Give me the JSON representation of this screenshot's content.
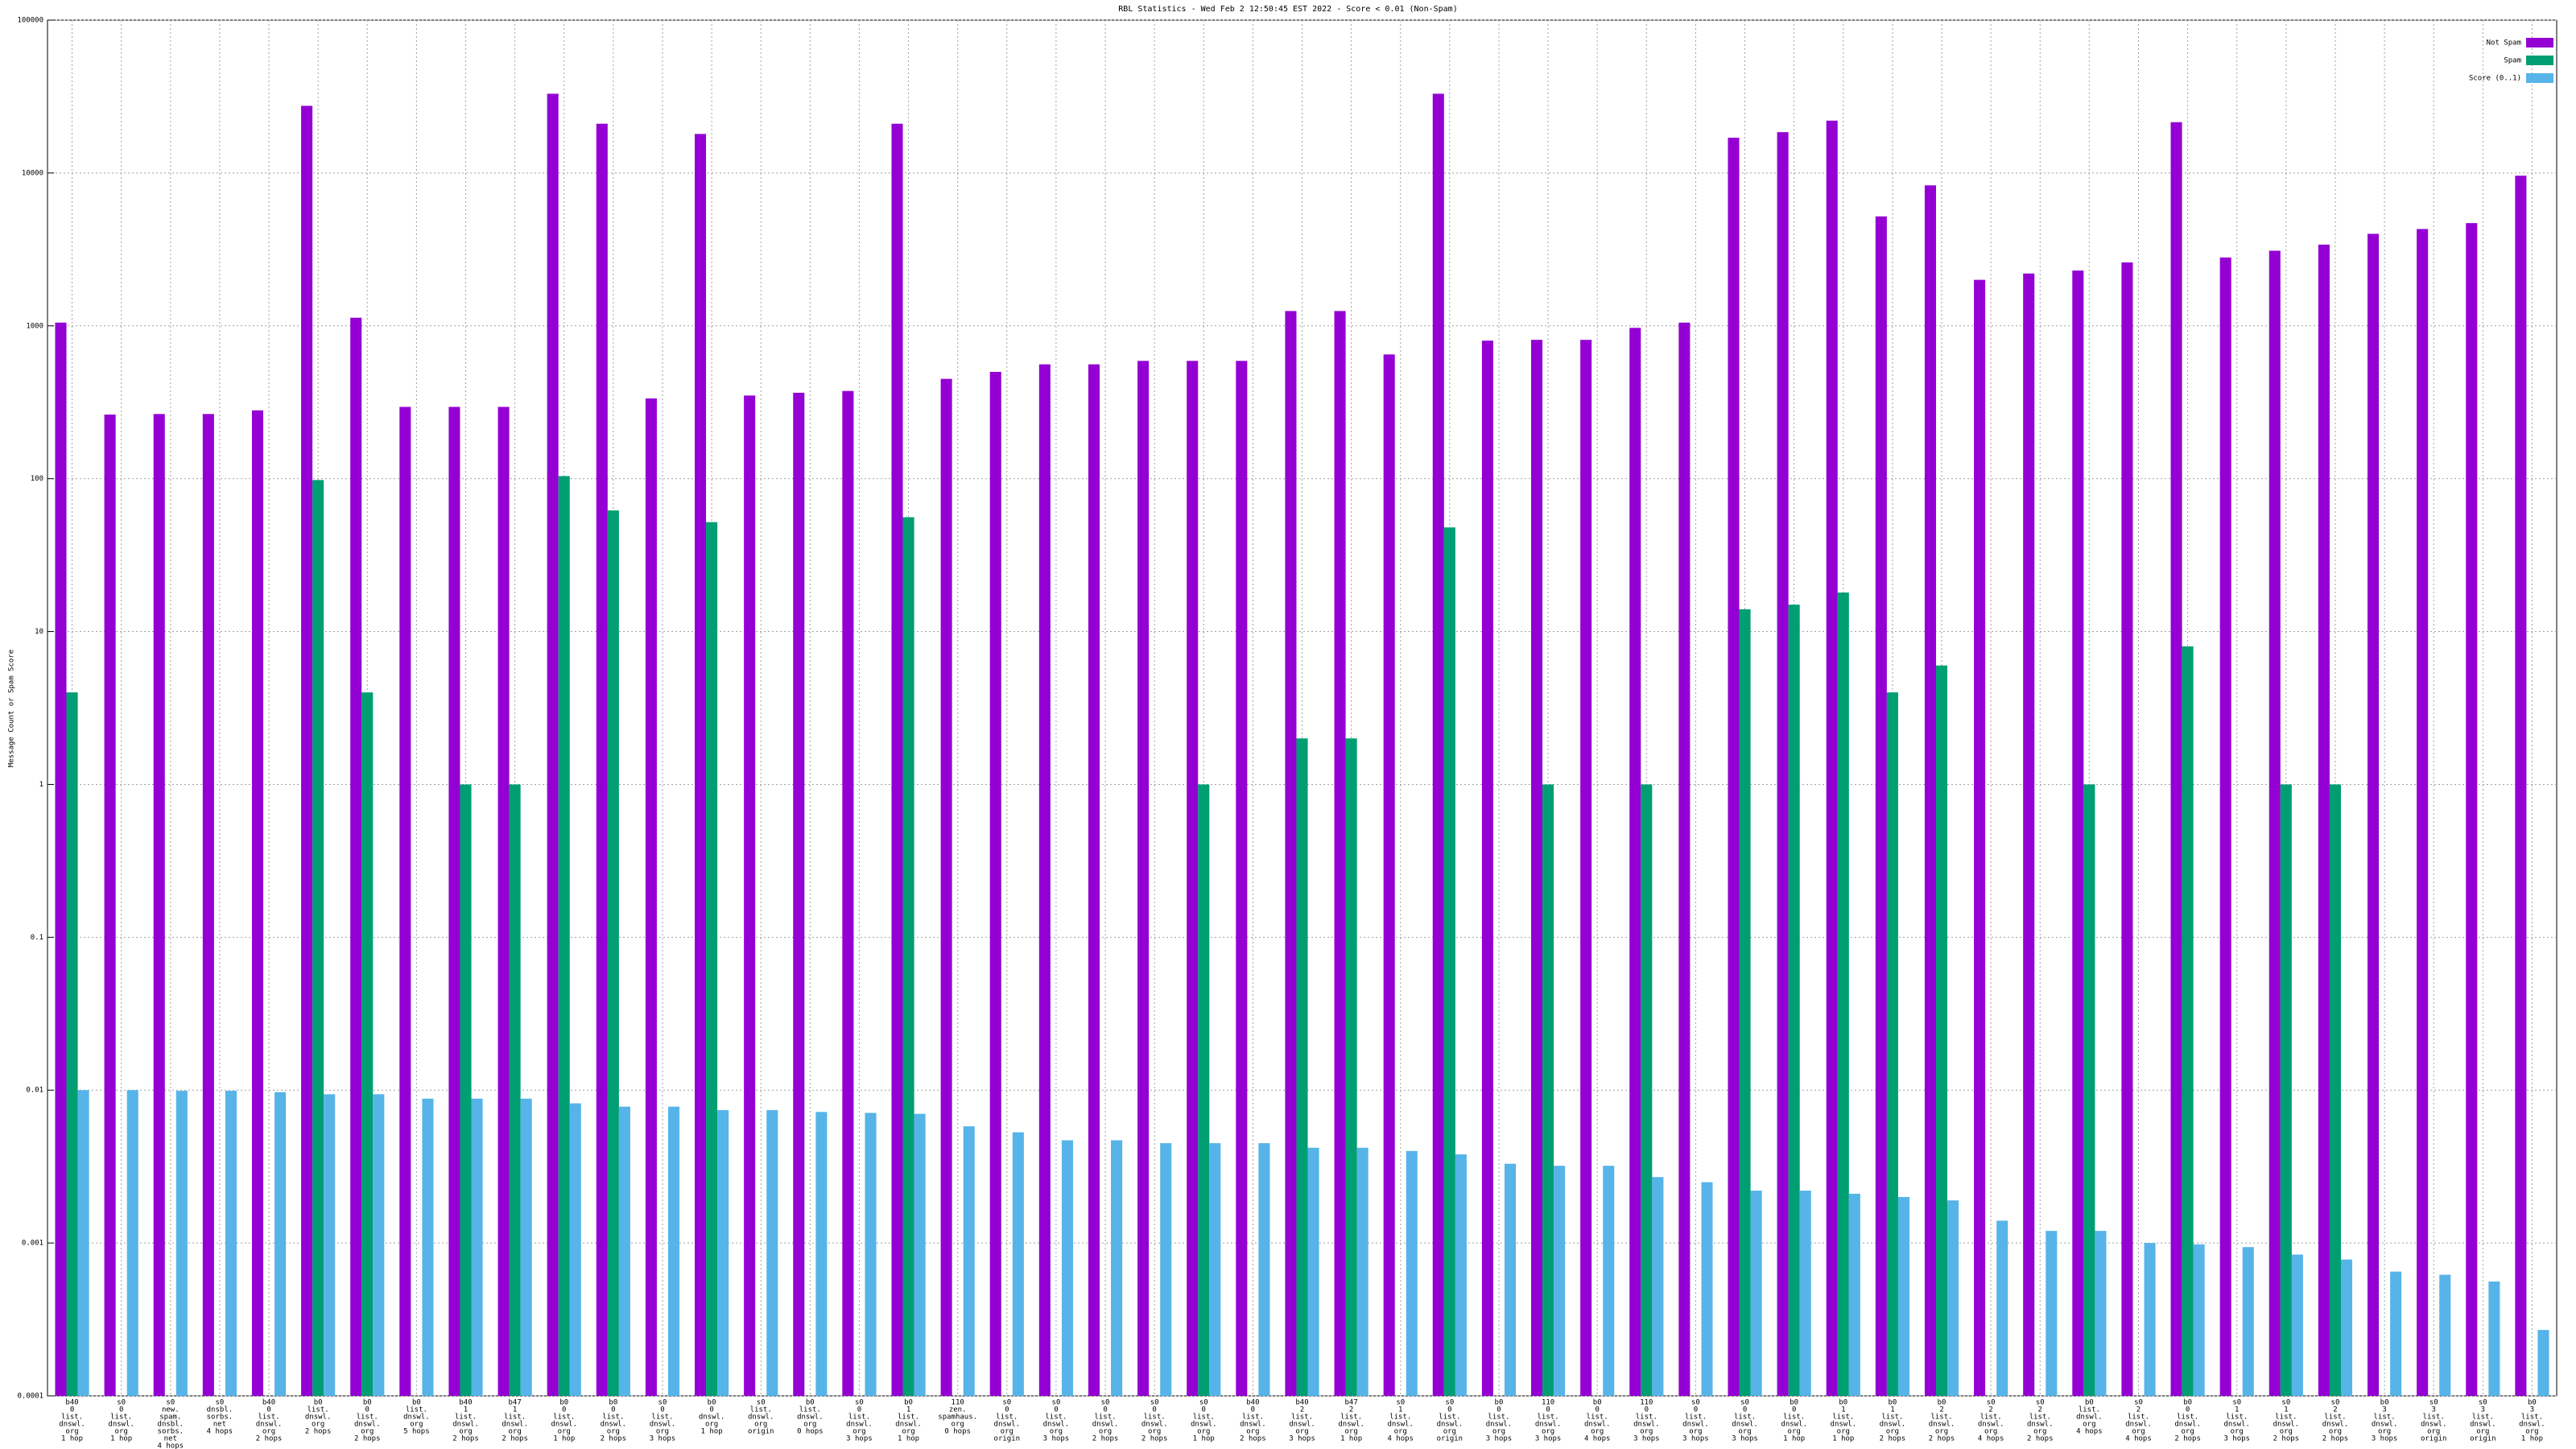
{
  "chart_data": {
    "type": "bar",
    "title": "RBL Statistics - Wed Feb  2 12:50:45 EST 2022 - Score < 0.01 (Non-Spam)",
    "y_label": "Message Count or Spam Score",
    "log_scale": true,
    "grid": true,
    "legend_position": "top-right",
    "ylim": [
      0.0001,
      100000
    ],
    "yticks": [
      0.0001,
      0.001,
      0.01,
      0.1,
      1,
      10,
      100,
      1000,
      10000,
      100000
    ],
    "categories": [
      [
        "b40",
        "0",
        "list.",
        "dnswl.",
        "org",
        "1 hop"
      ],
      [
        "s0",
        "0",
        "list.",
        "dnswl.",
        "org",
        "1 hop"
      ],
      [
        "s0",
        "new.",
        "spam.",
        "dnsbl.",
        "sorbs.",
        "net",
        "4 hops"
      ],
      [
        "s0",
        "dnsbl.",
        "sorbs.",
        "net",
        "4 hops"
      ],
      [
        "b40",
        "0",
        "list.",
        "dnswl.",
        "org",
        "2 hops"
      ],
      [
        "b0",
        "list.",
        "dnswl.",
        "org",
        "2 hops"
      ],
      [
        "b0",
        "0",
        "list.",
        "dnswl.",
        "org",
        "2 hops"
      ],
      [
        "b0",
        "list.",
        "dnswl.",
        "org",
        "5 hops"
      ],
      [
        "b40",
        "1",
        "list.",
        "dnswl.",
        "org",
        "2 hops"
      ],
      [
        "b47",
        "1",
        "list.",
        "dnswl.",
        "org",
        "2 hops"
      ],
      [
        "b0",
        "0",
        "list.",
        "dnswl.",
        "org",
        "1 hop"
      ],
      [
        "b0",
        "0",
        "list.",
        "dnswl.",
        "org",
        "2 hops"
      ],
      [
        "s0",
        "0",
        "list.",
        "dnswl.",
        "org",
        "3 hops"
      ],
      [
        "b0",
        "0",
        "dnswl.",
        "org",
        "1 hop"
      ],
      [
        "s0",
        "list.",
        "dnswl.",
        "org",
        "origin"
      ],
      [
        "b0",
        "list.",
        "dnswl.",
        "org",
        "0 hops"
      ],
      [
        "s0",
        "0",
        "list.",
        "dnswl.",
        "org",
        "3 hops"
      ],
      [
        "b0",
        "1",
        "list.",
        "dnswl.",
        "org",
        "1 hop"
      ],
      [
        "110",
        "zen.",
        "spamhaus.",
        "org",
        "0 hops"
      ],
      [
        "s0",
        "0",
        "list.",
        "dnswl.",
        "org",
        "origin"
      ],
      [
        "s0",
        "0",
        "list.",
        "dnswl.",
        "org",
        "3 hops"
      ],
      [
        "s0",
        "0",
        "list.",
        "dnswl.",
        "org",
        "2 hops"
      ],
      [
        "s0",
        "0",
        "list.",
        "dnswl.",
        "org",
        "2 hops"
      ],
      [
        "s0",
        "0",
        "list.",
        "dnswl.",
        "org",
        "1 hop"
      ],
      [
        "b40",
        "0",
        "list.",
        "dnswl.",
        "org",
        "2 hops"
      ],
      [
        "b40",
        "2",
        "list.",
        "dnswl.",
        "org",
        "3 hops"
      ],
      [
        "b47",
        "2",
        "list.",
        "dnswl.",
        "org",
        "1 hop"
      ],
      [
        "s0",
        "1",
        "list.",
        "dnswl.",
        "org",
        "4 hops"
      ],
      [
        "s0",
        "0",
        "list.",
        "dnswl.",
        "org",
        "origin"
      ],
      [
        "b0",
        "0",
        "list.",
        "dnswl.",
        "org",
        "3 hops"
      ],
      [
        "110",
        "0",
        "list.",
        "dnswl.",
        "org",
        "3 hops"
      ],
      [
        "b0",
        "0",
        "list.",
        "dnswl.",
        "org",
        "4 hops"
      ],
      [
        "110",
        "0",
        "list.",
        "dnswl.",
        "org",
        "3 hops"
      ],
      [
        "s0",
        "0",
        "list.",
        "dnswl.",
        "org",
        "3 hops"
      ],
      [
        "s0",
        "0",
        "list.",
        "dnswl.",
        "org",
        "3 hops"
      ],
      [
        "b0",
        "0",
        "list.",
        "dnswl.",
        "org",
        "1 hop"
      ],
      [
        "b0",
        "1",
        "list.",
        "dnswl.",
        "org",
        "1 hop"
      ],
      [
        "b0",
        "1",
        "list.",
        "dnswl.",
        "org",
        "2 hops"
      ],
      [
        "b0",
        "2",
        "list.",
        "dnswl.",
        "org",
        "2 hops"
      ],
      [
        "s0",
        "2",
        "list.",
        "dnswl.",
        "org",
        "4 hops"
      ],
      [
        "s0",
        "2",
        "list.",
        "dnswl.",
        "org",
        "2 hops"
      ],
      [
        "b0",
        "list.",
        "dnswl.",
        "org",
        "4 hops"
      ],
      [
        "s0",
        "2",
        "list.",
        "dnswl.",
        "org",
        "4 hops"
      ],
      [
        "b0",
        "0",
        "list.",
        "dnswl.",
        "org",
        "2 hops"
      ],
      [
        "s0",
        "1",
        "list.",
        "dnswl.",
        "org",
        "3 hops"
      ],
      [
        "s0",
        "1",
        "list.",
        "dnswl.",
        "org",
        "2 hops"
      ],
      [
        "s0",
        "2",
        "list.",
        "dnswl.",
        "org",
        "2 hops"
      ],
      [
        "b0",
        "3",
        "list.",
        "dnswl.",
        "org",
        "3 hops"
      ],
      [
        "s0",
        "3",
        "list.",
        "dnswl.",
        "org",
        "origin"
      ],
      [
        "s0",
        "3",
        "list.",
        "dnswl.",
        "org",
        "origin"
      ],
      [
        "b0",
        "3",
        "list.",
        "dnswl.",
        "org",
        "1 hop"
      ]
    ],
    "series": [
      {
        "name": "Not Spam",
        "color": "#9400d3",
        "values": [
          1050,
          263,
          265,
          265,
          280,
          27500,
          1130,
          295,
          295,
          295,
          33000,
          21000,
          335,
          18000,
          350,
          365,
          375,
          21000,
          450,
          500,
          560,
          560,
          590,
          590,
          590,
          1250,
          1250,
          650,
          33000,
          800,
          810,
          810,
          970,
          1050,
          17000,
          18500,
          22000,
          5200,
          8300,
          2000,
          2200,
          2300,
          2600,
          21500,
          2800,
          3100,
          3400,
          4000,
          4300,
          4700,
          9600
        ]
      },
      {
        "name": "Spam",
        "color": "#009e73",
        "values": [
          4,
          null,
          null,
          null,
          null,
          98,
          4,
          null,
          1,
          1,
          104,
          62,
          null,
          52,
          null,
          null,
          null,
          56,
          null,
          null,
          null,
          null,
          null,
          1,
          null,
          2,
          2,
          null,
          48,
          null,
          1,
          null,
          1,
          null,
          14,
          15,
          18,
          4,
          6,
          null,
          null,
          1,
          null,
          8,
          null,
          1,
          1,
          null,
          null,
          null,
          null
        ]
      },
      {
        "name": "Score (0..1)",
        "color": "#56b4e9",
        "values": [
          0.01,
          0.01,
          0.0099,
          0.0099,
          0.0097,
          0.0094,
          0.0094,
          0.0088,
          0.0088,
          0.0088,
          0.0082,
          0.0078,
          0.0078,
          0.0074,
          0.0074,
          0.0072,
          0.0071,
          0.007,
          0.0058,
          0.0053,
          0.0047,
          0.0047,
          0.0045,
          0.0045,
          0.0045,
          0.0042,
          0.0042,
          0.004,
          0.0038,
          0.0033,
          0.0032,
          0.0032,
          0.0027,
          0.0025,
          0.0022,
          0.0022,
          0.0021,
          0.002,
          0.0019,
          0.0014,
          0.0012,
          0.0012,
          0.001,
          0.00098,
          0.00094,
          0.00084,
          0.00078,
          0.00065,
          0.00062,
          0.00056,
          0.00027
        ]
      }
    ]
  }
}
